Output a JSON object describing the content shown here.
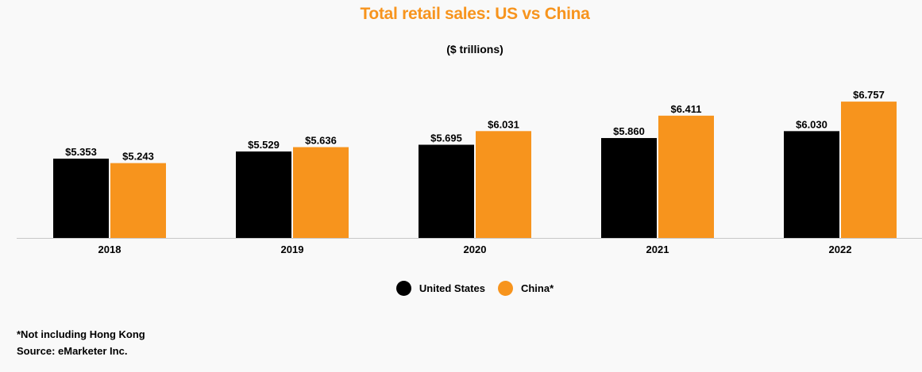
{
  "chart_data": {
    "type": "bar",
    "title": "Total retail sales: US vs China",
    "subtitle": "($ trillions)",
    "categories": [
      "2018",
      "2019",
      "2020",
      "2021",
      "2022"
    ],
    "series": [
      {
        "name": "United States",
        "color": "#000000",
        "values": [
          5.353,
          5.529,
          5.695,
          5.86,
          6.03
        ],
        "labels": [
          "$5.353",
          "$5.529",
          "$5.695",
          "$5.860",
          "$6.030"
        ]
      },
      {
        "name": "China*",
        "color": "#f7941d",
        "values": [
          5.243,
          5.636,
          6.031,
          6.411,
          6.757
        ],
        "labels": [
          "$5.243",
          "$5.636",
          "$6.031",
          "$6.411",
          "$6.757"
        ]
      }
    ],
    "ylim": [
      3.4,
      7
    ],
    "grid": false,
    "legend": "bottom-center"
  },
  "footnote": {
    "note": "*Not including Hong Kong",
    "source": "Source:  eMarketer Inc."
  }
}
